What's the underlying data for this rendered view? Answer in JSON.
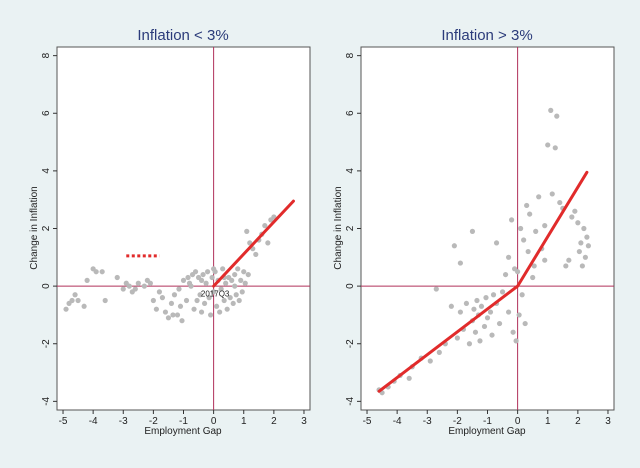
{
  "chart_data": [
    {
      "type": "scatter",
      "title": "Inflation < 3%",
      "xlabel": "Employment Gap",
      "ylabel": "Change in Inflation",
      "xlim": [
        -5.2,
        3.2
      ],
      "ylim": [
        -4.3,
        8.3
      ],
      "xticks": [
        -5,
        -4,
        -3,
        -2,
        -1,
        0,
        1,
        2,
        3
      ],
      "yticks": [
        -4,
        -2,
        0,
        2,
        4,
        6,
        8
      ],
      "colors": {
        "points": "#b9b9b9",
        "fit": "#e12b2b",
        "ref": "#b0305a",
        "dotted": "#e12b2b"
      },
      "points": [
        [
          -4.9,
          -0.8
        ],
        [
          -4.8,
          -0.6
        ],
        [
          -4.7,
          -0.5
        ],
        [
          -4.6,
          -0.3
        ],
        [
          -4.5,
          -0.5
        ],
        [
          -4.3,
          -0.7
        ],
        [
          -4.2,
          0.2
        ],
        [
          -4.0,
          0.6
        ],
        [
          -3.9,
          0.5
        ],
        [
          -3.7,
          0.5
        ],
        [
          -3.6,
          -0.5
        ],
        [
          -3.2,
          0.3
        ],
        [
          -3.0,
          -0.1
        ],
        [
          -2.8,
          0.0
        ],
        [
          -2.7,
          -0.2
        ],
        [
          -2.5,
          0.1
        ],
        [
          -2.3,
          0.0
        ],
        [
          -2.2,
          0.2
        ],
        [
          -2.1,
          0.1
        ],
        [
          -2.0,
          -0.5
        ],
        [
          -1.9,
          -0.8
        ],
        [
          -1.8,
          -0.2
        ],
        [
          -1.7,
          -0.4
        ],
        [
          -1.6,
          -0.9
        ],
        [
          -1.5,
          -1.1
        ],
        [
          -1.4,
          -0.6
        ],
        [
          -1.35,
          -1.0
        ],
        [
          -1.3,
          -0.3
        ],
        [
          -1.2,
          -1.0
        ],
        [
          -1.1,
          -0.7
        ],
        [
          -1.05,
          -1.2
        ],
        [
          -1.0,
          0.2
        ],
        [
          -0.9,
          -0.5
        ],
        [
          -0.85,
          0.3
        ],
        [
          -0.8,
          0.1
        ],
        [
          -0.7,
          0.4
        ],
        [
          -0.65,
          -0.8
        ],
        [
          -0.6,
          0.5
        ],
        [
          -0.55,
          -0.5
        ],
        [
          -0.5,
          0.3
        ],
        [
          -0.45,
          -0.3
        ],
        [
          -0.4,
          -0.9
        ],
        [
          -0.35,
          0.4
        ],
        [
          -0.3,
          -0.6
        ],
        [
          -0.25,
          0.1
        ],
        [
          -0.2,
          0.5
        ],
        [
          -0.15,
          -0.4
        ],
        [
          -0.1,
          -1.0
        ],
        [
          -0.05,
          0.3
        ],
        [
          0.0,
          -0.2
        ],
        [
          0.05,
          0.5
        ],
        [
          0.1,
          -0.7
        ],
        [
          0.15,
          0.2
        ],
        [
          0.2,
          -0.9
        ],
        [
          0.25,
          -0.1
        ],
        [
          0.3,
          0.6
        ],
        [
          0.35,
          -0.5
        ],
        [
          0.4,
          0.1
        ],
        [
          0.45,
          -0.8
        ],
        [
          0.5,
          0.3
        ],
        [
          0.55,
          -0.4
        ],
        [
          0.6,
          0.2
        ],
        [
          0.65,
          -0.6
        ],
        [
          0.7,
          0.4
        ],
        [
          0.75,
          -0.3
        ],
        [
          0.8,
          0.6
        ],
        [
          0.85,
          -0.5
        ],
        [
          0.9,
          0.2
        ],
        [
          0.95,
          -0.2
        ],
        [
          1.0,
          0.5
        ],
        [
          1.05,
          0.1
        ],
        [
          1.1,
          1.9
        ],
        [
          1.15,
          0.4
        ],
        [
          1.2,
          1.5
        ],
        [
          1.3,
          1.3
        ],
        [
          1.4,
          1.1
        ],
        [
          1.5,
          1.6
        ],
        [
          1.6,
          1.8
        ],
        [
          1.7,
          2.1
        ],
        [
          1.8,
          1.5
        ],
        [
          1.9,
          2.3
        ],
        [
          2.0,
          2.4
        ],
        [
          -2.9,
          0.1
        ],
        [
          -2.6,
          -0.1
        ],
        [
          -1.15,
          -0.1
        ],
        [
          -0.75,
          0.0
        ],
        [
          0.0,
          0.6
        ],
        [
          0.35,
          0.3
        ],
        [
          0.7,
          0.0
        ],
        [
          -0.4,
          0.2
        ]
      ],
      "fit_line": [
        [
          0.0,
          0.0
        ],
        [
          2.65,
          2.95
        ]
      ],
      "dotted_segment": [
        [
          -2.9,
          1.05
        ],
        [
          -1.8,
          1.05
        ]
      ],
      "annotation": {
        "text": "2017Q3",
        "x": 0.05,
        "y": -0.25
      }
    },
    {
      "type": "scatter",
      "title": "Inflation > 3%",
      "xlabel": "Employment Gap",
      "ylabel": "Change in Inflation",
      "xlim": [
        -5.2,
        3.2
      ],
      "ylim": [
        -4.3,
        8.3
      ],
      "xticks": [
        -5,
        -4,
        -3,
        -2,
        -1,
        0,
        1,
        2,
        3
      ],
      "yticks": [
        -4,
        -2,
        0,
        2,
        4,
        6,
        8
      ],
      "colors": {
        "points": "#b9b9b9",
        "fit": "#e12b2b",
        "ref": "#b0305a"
      },
      "points": [
        [
          -4.6,
          -3.6
        ],
        [
          -4.5,
          -3.7
        ],
        [
          -4.3,
          -3.5
        ],
        [
          -4.1,
          -3.3
        ],
        [
          -3.9,
          -3.1
        ],
        [
          -3.6,
          -3.2
        ],
        [
          -3.5,
          -2.8
        ],
        [
          -3.2,
          -2.5
        ],
        [
          -2.9,
          -2.6
        ],
        [
          -2.7,
          -0.1
        ],
        [
          -2.6,
          -2.3
        ],
        [
          -2.4,
          -2.0
        ],
        [
          -2.2,
          -0.7
        ],
        [
          -2.0,
          -1.8
        ],
        [
          -1.9,
          -0.9
        ],
        [
          -1.8,
          -1.5
        ],
        [
          -1.7,
          -0.6
        ],
        [
          -1.6,
          -2.0
        ],
        [
          -1.5,
          -1.2
        ],
        [
          -1.45,
          -0.8
        ],
        [
          -1.4,
          -1.6
        ],
        [
          -1.35,
          -0.5
        ],
        [
          -1.3,
          -1.0
        ],
        [
          -1.25,
          -1.9
        ],
        [
          -1.2,
          -0.7
        ],
        [
          -1.1,
          -1.4
        ],
        [
          -1.05,
          -0.4
        ],
        [
          -1.0,
          -1.1
        ],
        [
          -0.9,
          -0.9
        ],
        [
          -0.85,
          -1.7
        ],
        [
          -0.8,
          -0.3
        ],
        [
          -0.7,
          -0.6
        ],
        [
          -0.6,
          -1.3
        ],
        [
          -0.5,
          -0.2
        ],
        [
          -0.4,
          0.4
        ],
        [
          -0.3,
          -0.9
        ],
        [
          -0.2,
          2.3
        ],
        [
          -0.15,
          -1.6
        ],
        [
          -0.1,
          0.6
        ],
        [
          -0.05,
          -1.9
        ],
        [
          0.0,
          0.5
        ],
        [
          0.05,
          -1.0
        ],
        [
          0.1,
          2.0
        ],
        [
          0.15,
          -0.3
        ],
        [
          0.2,
          1.6
        ],
        [
          0.3,
          2.8
        ],
        [
          0.35,
          1.2
        ],
        [
          0.4,
          2.5
        ],
        [
          0.5,
          0.3
        ],
        [
          0.6,
          1.9
        ],
        [
          0.7,
          3.1
        ],
        [
          0.8,
          1.3
        ],
        [
          0.9,
          0.9
        ],
        [
          1.0,
          4.9
        ],
        [
          1.1,
          6.1
        ],
        [
          1.15,
          3.2
        ],
        [
          1.25,
          4.8
        ],
        [
          1.3,
          5.9
        ],
        [
          1.4,
          2.9
        ],
        [
          1.5,
          2.7
        ],
        [
          1.6,
          0.7
        ],
        [
          1.7,
          0.9
        ],
        [
          1.8,
          2.4
        ],
        [
          1.9,
          2.6
        ],
        [
          2.0,
          2.2
        ],
        [
          2.05,
          1.2
        ],
        [
          2.1,
          1.5
        ],
        [
          2.15,
          0.7
        ],
        [
          2.2,
          2.0
        ],
        [
          2.25,
          1.0
        ],
        [
          2.3,
          1.7
        ],
        [
          2.35,
          1.4
        ],
        [
          -1.9,
          0.8
        ],
        [
          -1.5,
          1.9
        ],
        [
          -0.3,
          1.0
        ],
        [
          0.25,
          -1.3
        ],
        [
          0.55,
          0.7
        ],
        [
          -2.1,
          1.4
        ],
        [
          -0.7,
          1.5
        ],
        [
          0.9,
          2.1
        ]
      ],
      "fit_line": [
        [
          -4.6,
          -3.65
        ],
        [
          0.0,
          0.0
        ],
        [
          2.3,
          3.95
        ]
      ]
    }
  ]
}
